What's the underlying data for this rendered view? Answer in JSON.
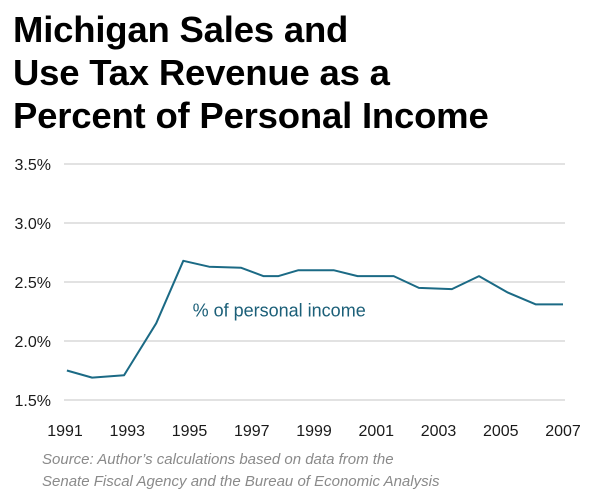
{
  "chart_data": {
    "type": "line",
    "title": "Michigan Sales and\nUse Tax Revenue as a\nPercent of Personal Income",
    "xlabel": "",
    "ylabel": "",
    "ylim": [
      1.5,
      3.5
    ],
    "xlim": [
      1991,
      2007
    ],
    "grid": true,
    "y_ticks": [
      3.5,
      3.0,
      2.5,
      2.0,
      1.5
    ],
    "y_tick_labels": [
      "3.5%",
      "3.0%",
      "2.5%",
      "2.0%",
      "1.5%"
    ],
    "x_ticks": [
      1991,
      1993,
      1995,
      1997,
      1999,
      2001,
      2003,
      2005,
      2007
    ],
    "x_tick_labels": [
      "1991",
      "1993",
      "1995",
      "1997",
      "1999",
      "2001",
      "2003",
      "2005",
      "2007"
    ],
    "series": [
      {
        "name": "% of personal income",
        "color": "#1b6a85",
        "x": [
          1991.06,
          1991.87,
          1992.9,
          1993.93,
          1994.8,
          1995.63,
          1996.66,
          1997.37,
          1997.86,
          1998.5,
          1999.63,
          2000.4,
          2001.56,
          2002.37,
          2003.43,
          2004.3,
          2005.23,
          2006.13,
          2007.0
        ],
        "values": [
          1.75,
          1.69,
          1.71,
          2.15,
          2.68,
          2.63,
          2.62,
          2.55,
          2.55,
          2.6,
          2.6,
          2.55,
          2.55,
          2.45,
          2.44,
          2.55,
          2.41,
          2.31,
          2.31
        ]
      }
    ],
    "annotations": [
      {
        "text": "% of personal income",
        "x": 1995.1,
        "y": 2.26
      }
    ],
    "source": "Source: Author’s calculations based on data from the\nSenate Fiscal Agency and the Bureau of Economic Analysis"
  }
}
